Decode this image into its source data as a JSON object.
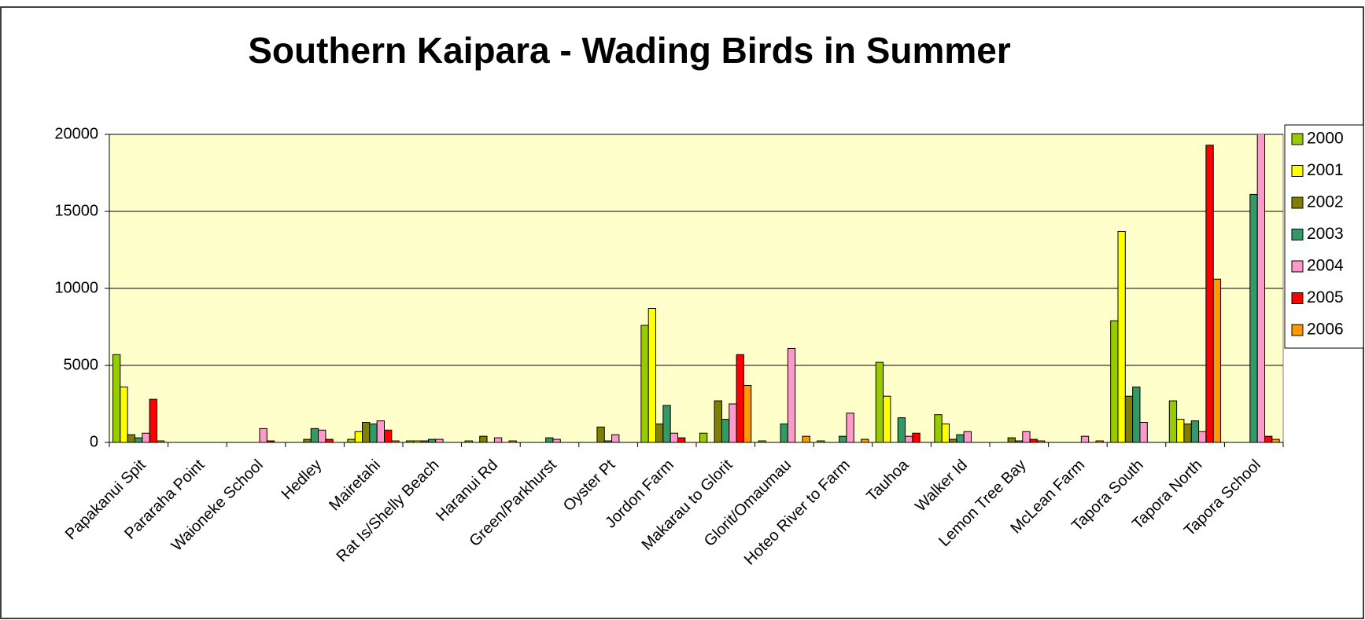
{
  "chart_data": {
    "type": "bar",
    "title": "Southern Kaipara - Wading Birds in Summer",
    "categories": [
      "Papakanui Spit",
      "Pararaha Point",
      "Waioneke School",
      "Hedley",
      "Mairetahi",
      "Rat Is/Shelly Beach",
      "Haranui Rd",
      "Green/Parkhurst",
      "Oyster Pt",
      "Jordon Farm",
      "Makarau to Glorit",
      "Glorit/Omaumau",
      "Hoteo River to Farm",
      "Tauhoa",
      "Walker Id",
      "Lemon Tree Bay",
      "McLean Farm",
      "Tapora South",
      "Tapora North",
      "Tapora School"
    ],
    "series": [
      {
        "name": "2000",
        "color": "#99cc00",
        "values": [
          5700,
          0,
          0,
          0,
          200,
          100,
          100,
          0,
          0,
          7600,
          600,
          100,
          100,
          5200,
          1800,
          0,
          0,
          7900,
          2700,
          0
        ]
      },
      {
        "name": "2001",
        "color": "#ffff00",
        "values": [
          3600,
          0,
          0,
          0,
          700,
          100,
          0,
          0,
          0,
          8700,
          0,
          0,
          0,
          3000,
          1200,
          0,
          0,
          13700,
          1500,
          0
        ]
      },
      {
        "name": "2002",
        "color": "#808000",
        "values": [
          500,
          0,
          0,
          200,
          1300,
          100,
          400,
          0,
          1000,
          1200,
          2700,
          0,
          0,
          0,
          200,
          300,
          0,
          3000,
          1200,
          0
        ]
      },
      {
        "name": "2003",
        "color": "#339966",
        "values": [
          300,
          0,
          0,
          900,
          1200,
          200,
          0,
          300,
          100,
          2400,
          1500,
          1200,
          400,
          1600,
          500,
          100,
          0,
          3600,
          1400,
          16100
        ]
      },
      {
        "name": "2004",
        "color": "#ff99cc",
        "values": [
          600,
          0,
          900,
          800,
          1400,
          200,
          300,
          200,
          500,
          600,
          2500,
          6100,
          1900,
          400,
          700,
          700,
          400,
          1300,
          700,
          21000
        ]
      },
      {
        "name": "2005",
        "color": "#ff0000",
        "values": [
          2800,
          0,
          100,
          200,
          800,
          0,
          0,
          0,
          0,
          300,
          5700,
          0,
          0,
          600,
          0,
          200,
          0,
          0,
          19300,
          400
        ]
      },
      {
        "name": "2006",
        "color": "#ff9900",
        "values": [
          100,
          0,
          0,
          0,
          100,
          0,
          100,
          0,
          0,
          0,
          3700,
          400,
          200,
          0,
          0,
          100,
          100,
          0,
          10600,
          200
        ]
      }
    ],
    "ylim": [
      0,
      20000
    ],
    "yticks": [
      0,
      5000,
      10000,
      15000,
      20000
    ],
    "grid": true,
    "plot_background": "#ffffcc",
    "legend": "right"
  }
}
